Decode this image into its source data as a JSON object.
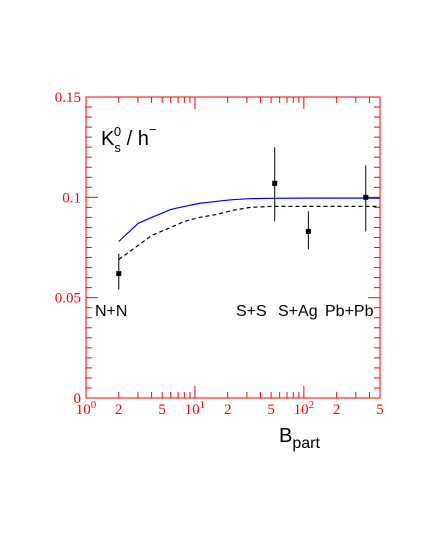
{
  "chart_data": {
    "type": "scatter",
    "title": "",
    "ylabel_main": "K",
    "ylabel_sup": "0",
    "ylabel_sub": "s",
    "ylabel_rest": " / h",
    "ylabel_rest_sup": "−",
    "xlabel_main": "B",
    "xlabel_sub": "part",
    "xscale": "log",
    "xlim": [
      1,
      500
    ],
    "ylim": [
      0,
      0.15
    ],
    "y_ticks": [
      "0",
      "0.05",
      "0.1",
      "0.15"
    ],
    "x_ticks": [
      "10",
      "0",
      "2",
      "5",
      "10",
      "1",
      "2",
      "5",
      "10",
      "2",
      "2",
      "5"
    ],
    "x_tick_groups": [
      {
        "value": 1,
        "main": "10",
        "sup": "0"
      },
      {
        "value": 2,
        "main": "2",
        "sup": ""
      },
      {
        "value": 5,
        "main": "5",
        "sup": ""
      },
      {
        "value": 10,
        "main": "10",
        "sup": "1"
      },
      {
        "value": 20,
        "main": "2",
        "sup": ""
      },
      {
        "value": 50,
        "main": "5",
        "sup": ""
      },
      {
        "value": 100,
        "main": "10",
        "sup": "2"
      },
      {
        "value": 200,
        "main": "2",
        "sup": ""
      },
      {
        "value": 500,
        "main": "5",
        "sup": ""
      }
    ],
    "series": [
      {
        "type": "scatter",
        "color": "#000000",
        "points": [
          {
            "x": 2,
            "y": 0.062,
            "ylo": 0.054,
            "yhi": 0.072
          },
          {
            "x": 54,
            "y": 0.107,
            "ylo": 0.088,
            "yhi": 0.125
          },
          {
            "x": 110,
            "y": 0.083,
            "ylo": 0.074,
            "yhi": 0.093
          },
          {
            "x": 370,
            "y": 0.1,
            "ylo": 0.083,
            "yhi": 0.116
          }
        ]
      },
      {
        "type": "line",
        "style": "solid",
        "color": "#0000ff",
        "x": [
          2,
          3,
          4,
          6,
          8,
          11,
          16,
          22,
          32,
          50,
          100,
          200,
          500
        ],
        "y": [
          0.078,
          0.087,
          0.09,
          0.094,
          0.0955,
          0.097,
          0.098,
          0.0988,
          0.0993,
          0.0995,
          0.0996,
          0.0996,
          0.0996
        ]
      },
      {
        "type": "line",
        "style": "dashed",
        "color": "#000000",
        "x": [
          2,
          3,
          4,
          6,
          8,
          11,
          16,
          22,
          32,
          50,
          100,
          200,
          500
        ],
        "y": [
          0.069,
          0.076,
          0.081,
          0.085,
          0.088,
          0.09,
          0.0915,
          0.0935,
          0.095,
          0.0955,
          0.0955,
          0.0955,
          0.0955
        ]
      }
    ],
    "annotations": [
      "N+N",
      "S+S",
      "S+Ag",
      "Pb+Pb"
    ],
    "grid": false,
    "axis_color": "#ff0000"
  }
}
